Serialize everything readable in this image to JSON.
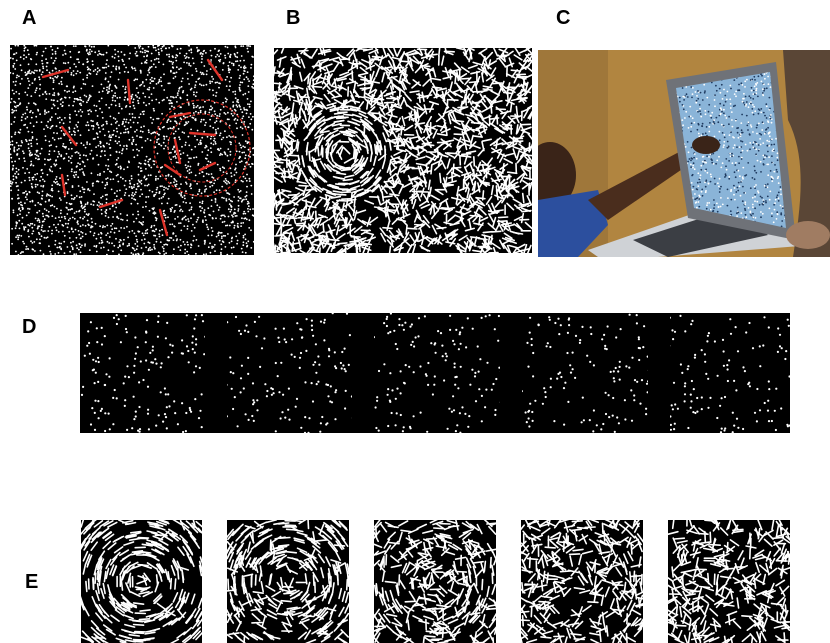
{
  "labels": {
    "a": "A",
    "b": "B",
    "c": "C",
    "d": "D",
    "e": "E"
  },
  "colors": {
    "background": "#ffffff",
    "stimulus_bg": "#000000",
    "dots": "#ffffff",
    "highlight": "#e0342b"
  }
}
